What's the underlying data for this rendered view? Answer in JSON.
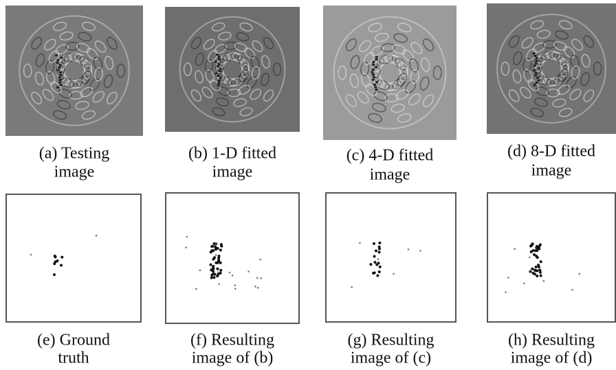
{
  "panels": [
    {
      "caption": [
        "(a)  Testing",
        "image"
      ]
    },
    {
      "caption": [
        "(b) 1-D fitted",
        "image"
      ]
    },
    {
      "caption": [
        "(c) 4-D fitted",
        "image"
      ]
    },
    {
      "caption": [
        "(d) 8-D fitted",
        "image"
      ]
    },
    {
      "caption": [
        "(e) Ground",
        "truth"
      ]
    },
    {
      "caption": [
        "(f) Resulting",
        "image of (b)"
      ]
    },
    {
      "caption": [
        "(g) Resulting",
        "image of (c)"
      ]
    },
    {
      "caption": [
        "(h) Resulting",
        "image of (d)"
      ]
    }
  ]
}
